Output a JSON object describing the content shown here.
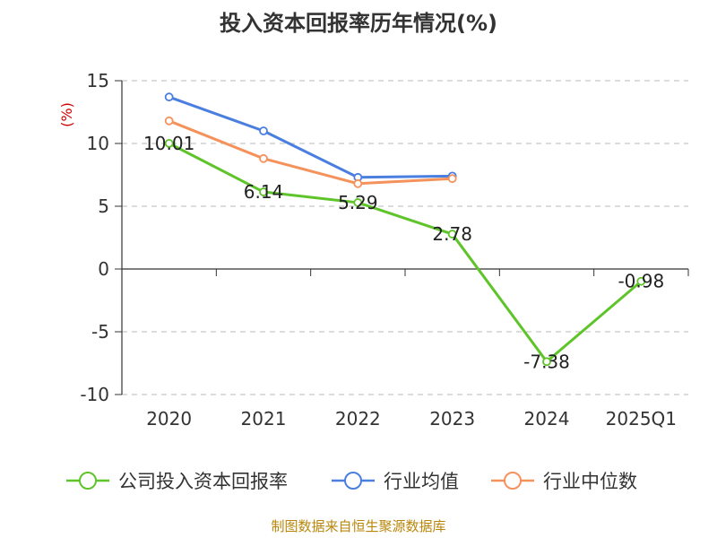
{
  "chart_data": {
    "type": "line",
    "title": "投入资本回报率历年情况(%)",
    "ylabel": "(%)",
    "ylim": [
      -10,
      15
    ],
    "yticks": [
      15,
      10,
      5,
      0,
      -5,
      -10
    ],
    "categories": [
      "2020",
      "2021",
      "2022",
      "2023",
      "2024",
      "2025Q1"
    ],
    "grid": true,
    "legend_position": "bottom",
    "series": [
      {
        "name": "公司投入资本回报率",
        "color": "#5ec42a",
        "values": [
          10.01,
          6.14,
          5.29,
          2.78,
          -7.38,
          -0.98
        ],
        "show_labels": true
      },
      {
        "name": "行业均值",
        "color": "#4a7fe0",
        "values": [
          13.7,
          11.0,
          7.3,
          7.4,
          null,
          null
        ],
        "show_labels": false
      },
      {
        "name": "行业中位数",
        "color": "#f5925b",
        "values": [
          11.8,
          8.8,
          6.8,
          7.2,
          null,
          null
        ],
        "show_labels": false
      }
    ],
    "data_labels": [
      "10.01",
      "6.14",
      "5.29",
      "2.78",
      "-7.38",
      "-0.98"
    ],
    "source": "制图数据来自恒生聚源数据库"
  }
}
